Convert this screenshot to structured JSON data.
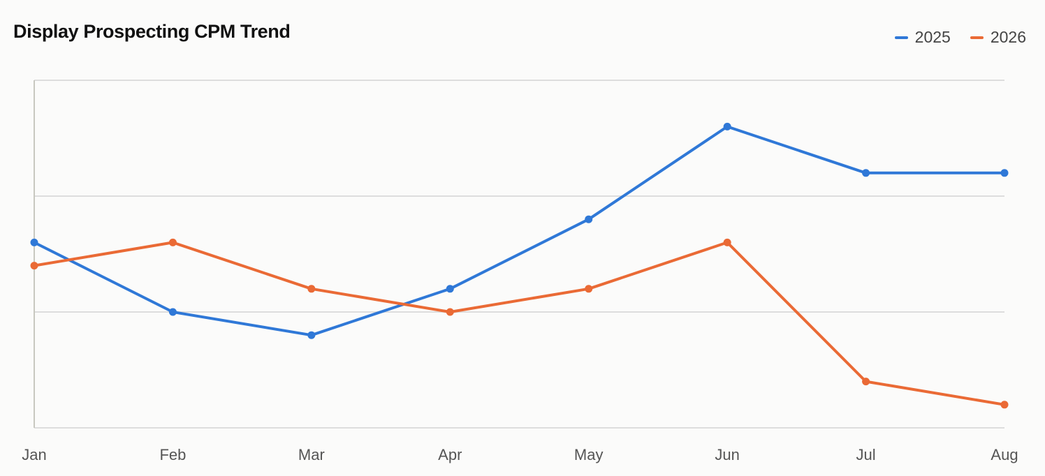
{
  "chart_data": {
    "type": "line",
    "title": "Display Prospecting CPM Trend",
    "xlabel": "",
    "ylabel": "",
    "categories": [
      "Jan",
      "Feb",
      "Mar",
      "Apr",
      "May",
      "Jun",
      "Jul",
      "Aug"
    ],
    "series": [
      {
        "name": "2025",
        "color": "#2f78d7",
        "values": [
          8.0,
          5.0,
          4.0,
          6.0,
          9.0,
          13.0,
          11.0,
          11.0
        ]
      },
      {
        "name": "2026",
        "color": "#ea6a35",
        "values": [
          7.0,
          8.0,
          6.0,
          5.0,
          6.0,
          8.0,
          2.0,
          1.0
        ]
      }
    ],
    "ylim": [
      0,
      15
    ],
    "yticks": [
      0,
      5,
      10,
      15
    ],
    "grid": true,
    "legend_position": "top-right"
  }
}
